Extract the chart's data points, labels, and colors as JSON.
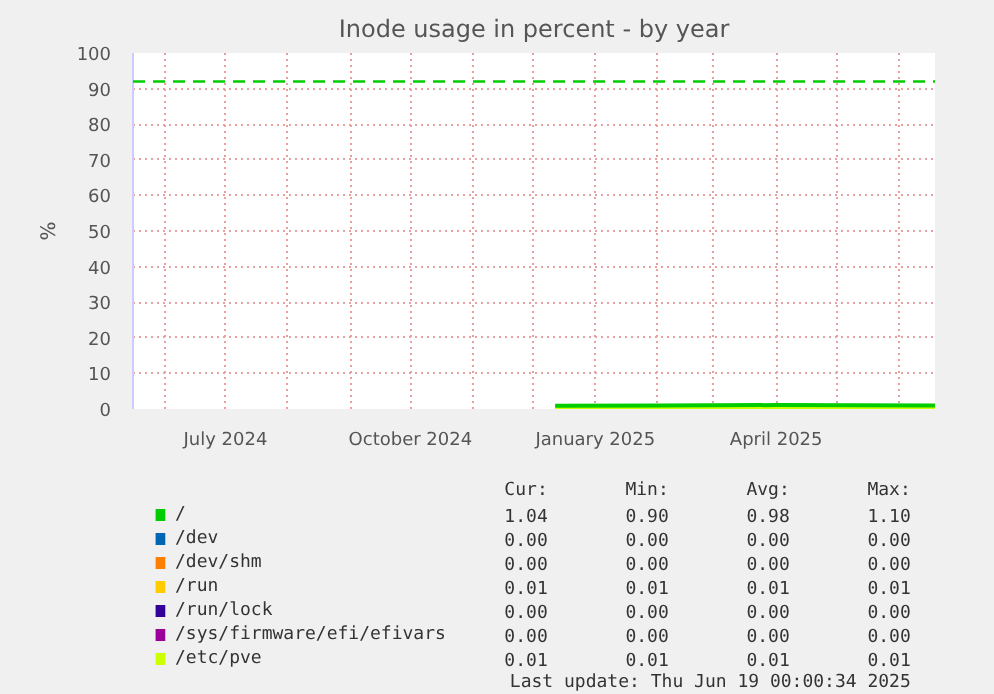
{
  "chart_data": {
    "type": "line",
    "title": "Inode usage in percent - by year",
    "ylabel": "%",
    "xlim": [
      "2024-05-16",
      "2025-06-19"
    ],
    "xticks": [
      {
        "value": "2024-06-01",
        "label": null
      },
      {
        "value": "2024-07-01",
        "label": "July 2024"
      },
      {
        "value": "2024-08-01",
        "label": null
      },
      {
        "value": "2024-09-01",
        "label": null
      },
      {
        "value": "2024-10-01",
        "label": "October 2024"
      },
      {
        "value": "2024-11-01",
        "label": null
      },
      {
        "value": "2024-12-01",
        "label": null
      },
      {
        "value": "2025-01-01",
        "label": "January 2025"
      },
      {
        "value": "2025-02-01",
        "label": null
      },
      {
        "value": "2025-03-01",
        "label": null
      },
      {
        "value": "2025-04-01",
        "label": "April 2025"
      },
      {
        "value": "2025-05-01",
        "label": null
      },
      {
        "value": "2025-06-01",
        "label": null
      }
    ],
    "ylim": [
      0,
      100
    ],
    "yticks": [
      0,
      10,
      20,
      30,
      40,
      50,
      60,
      70,
      80,
      90,
      100
    ],
    "grid": true,
    "legend": "bottom",
    "x": [
      "2024-12-12",
      "2025-02-01",
      "2025-04-01",
      "2025-06-19"
    ],
    "series": [
      {
        "name": "/",
        "color": "#00cc00",
        "values": [
          0.9,
          1,
          1.1,
          1
        ]
      },
      {
        "name": "/dev",
        "color": "#0066b3",
        "values": [
          null,
          null,
          null,
          null
        ]
      },
      {
        "name": "/dev/shm",
        "color": "#ff8000",
        "values": [
          null,
          null,
          null,
          null
        ]
      },
      {
        "name": "/run",
        "color": "#ffcc00",
        "values": [
          null,
          null,
          null,
          null
        ]
      },
      {
        "name": "/run/lock",
        "color": "#330099",
        "values": [
          null,
          null,
          null,
          null
        ]
      },
      {
        "name": "/sys/firmware/efi/efivars",
        "color": "#990099",
        "values": [
          null,
          null,
          null,
          null
        ]
      },
      {
        "name": "/etc/pve",
        "color": "#ccff00",
        "values": [
          0,
          0,
          0,
          0
        ]
      }
    ],
    "ref_lines": [
      {
        "axis": "y",
        "value": 92,
        "color": "#00cc00",
        "line_style": "dashed"
      }
    ],
    "annotations": [
      "Cur:",
      "Min:",
      "Avg:",
      "Max:",
      "1.04",
      "0.90",
      "0.98",
      "1.10",
      "0.00",
      "0.00",
      "0.00",
      "0.00",
      "0.00",
      "0.00",
      "0.00",
      "0.00",
      "0.01",
      "0.01",
      "0.01",
      "0.01",
      "0.00",
      "0.00",
      "0.00",
      "0.00",
      "0.00",
      "0.00",
      "0.00",
      "0.00",
      "0.01",
      "0.01",
      "0.01",
      "0.01",
      "Last update: Thu Jun 19 00:00:34 2025"
    ]
  }
}
